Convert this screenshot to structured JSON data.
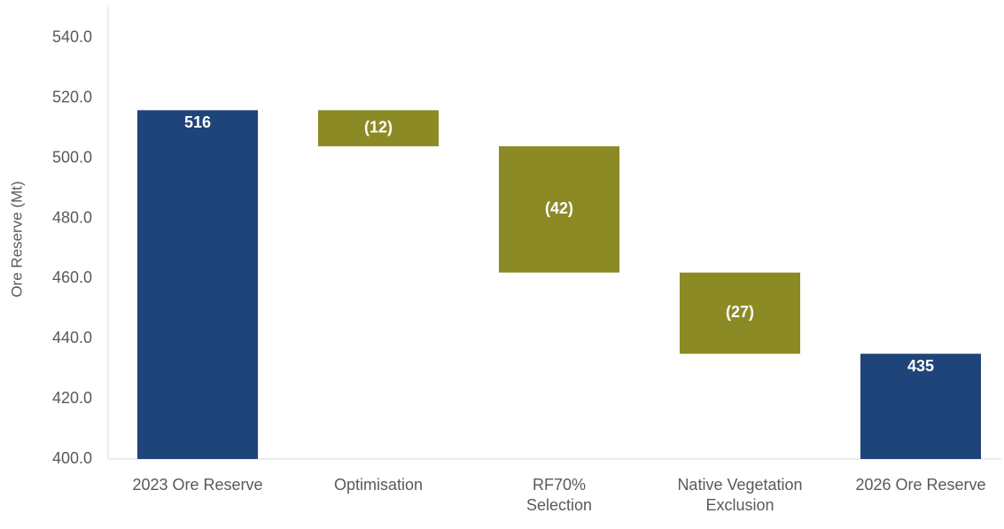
{
  "chart_data": {
    "type": "waterfall",
    "y_label": "Ore Reserve (Mt)",
    "categories": [
      "2023 Ore Reserve",
      "Optimisation",
      "RF70%\nSelection",
      "Native Vegetation\nExclusion",
      "2026 Ore Reserve"
    ],
    "values": [
      516,
      -12,
      -42,
      -27,
      435
    ],
    "value_labels": [
      "516",
      "(12)",
      "(42)",
      "(27)",
      "435"
    ],
    "measure": [
      "absolute",
      "relative",
      "relative",
      "relative",
      "absolute"
    ],
    "colors": [
      "#1f4479",
      "#8c8a25",
      "#8c8a25",
      "#8c8a25",
      "#1f4479"
    ],
    "ylim": [
      400,
      550
    ],
    "yticks": [
      {
        "value": 400,
        "label": "400.0"
      },
      {
        "value": 420,
        "label": "420.0"
      },
      {
        "value": 440,
        "label": "440.0"
      },
      {
        "value": 460,
        "label": "460.0"
      },
      {
        "value": 480,
        "label": "480.0"
      },
      {
        "value": 500,
        "label": "500.0"
      },
      {
        "value": 520,
        "label": "520.0"
      },
      {
        "value": 540,
        "label": "540.0"
      }
    ],
    "grid": false
  }
}
